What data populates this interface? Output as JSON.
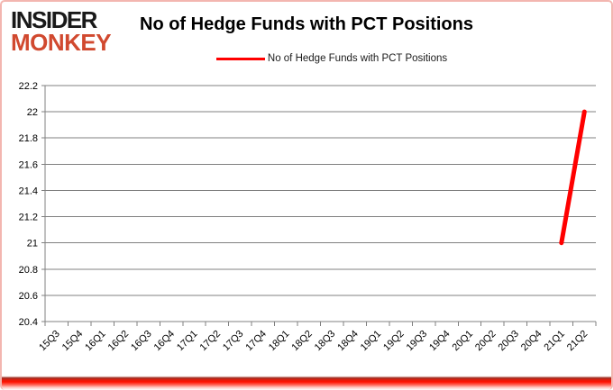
{
  "logo": {
    "line1": "INSIDER",
    "line2": "MONKEY",
    "insider_color": "#191919",
    "monkey_color": "#d1492f"
  },
  "header": {
    "title": "No of Hedge Funds with PCT Positions"
  },
  "legend": {
    "label": "No of Hedge Funds with PCT Positions",
    "line_color": "#ff0000"
  },
  "chart_data": {
    "type": "line",
    "title": "No of Hedge Funds with PCT Positions",
    "categories": [
      "15Q3",
      "15Q4",
      "16Q1",
      "16Q2",
      "16Q3",
      "16Q4",
      "17Q1",
      "17Q2",
      "17Q3",
      "17Q4",
      "18Q1",
      "18Q2",
      "18Q3",
      "18Q4",
      "19Q1",
      "19Q2",
      "19Q3",
      "19Q4",
      "20Q1",
      "20Q2",
      "20Q3",
      "20Q4",
      "21Q1",
      "21Q2"
    ],
    "series": [
      {
        "name": "No of Hedge Funds with PCT Positions",
        "color": "#ff0000",
        "line_width": 5,
        "values": [
          null,
          null,
          null,
          null,
          null,
          null,
          null,
          null,
          null,
          null,
          null,
          null,
          null,
          null,
          null,
          null,
          null,
          null,
          null,
          null,
          null,
          null,
          21,
          22
        ]
      }
    ],
    "xlabel": "",
    "ylabel": "",
    "ylim": [
      20.4,
      22.2
    ],
    "ytick_step": 0.2,
    "ytick_labels": [
      "22.2",
      "22",
      "21.8",
      "21.6",
      "21.4",
      "21.2",
      "21",
      "20.8",
      "20.6",
      "20.4"
    ],
    "grid": true,
    "gridline_color": "#808080",
    "axis_color": "#808080",
    "tick_label_color": "#000000",
    "tick_label_size": 11,
    "x_label_rotation": -45,
    "legend_position": "top-center"
  }
}
